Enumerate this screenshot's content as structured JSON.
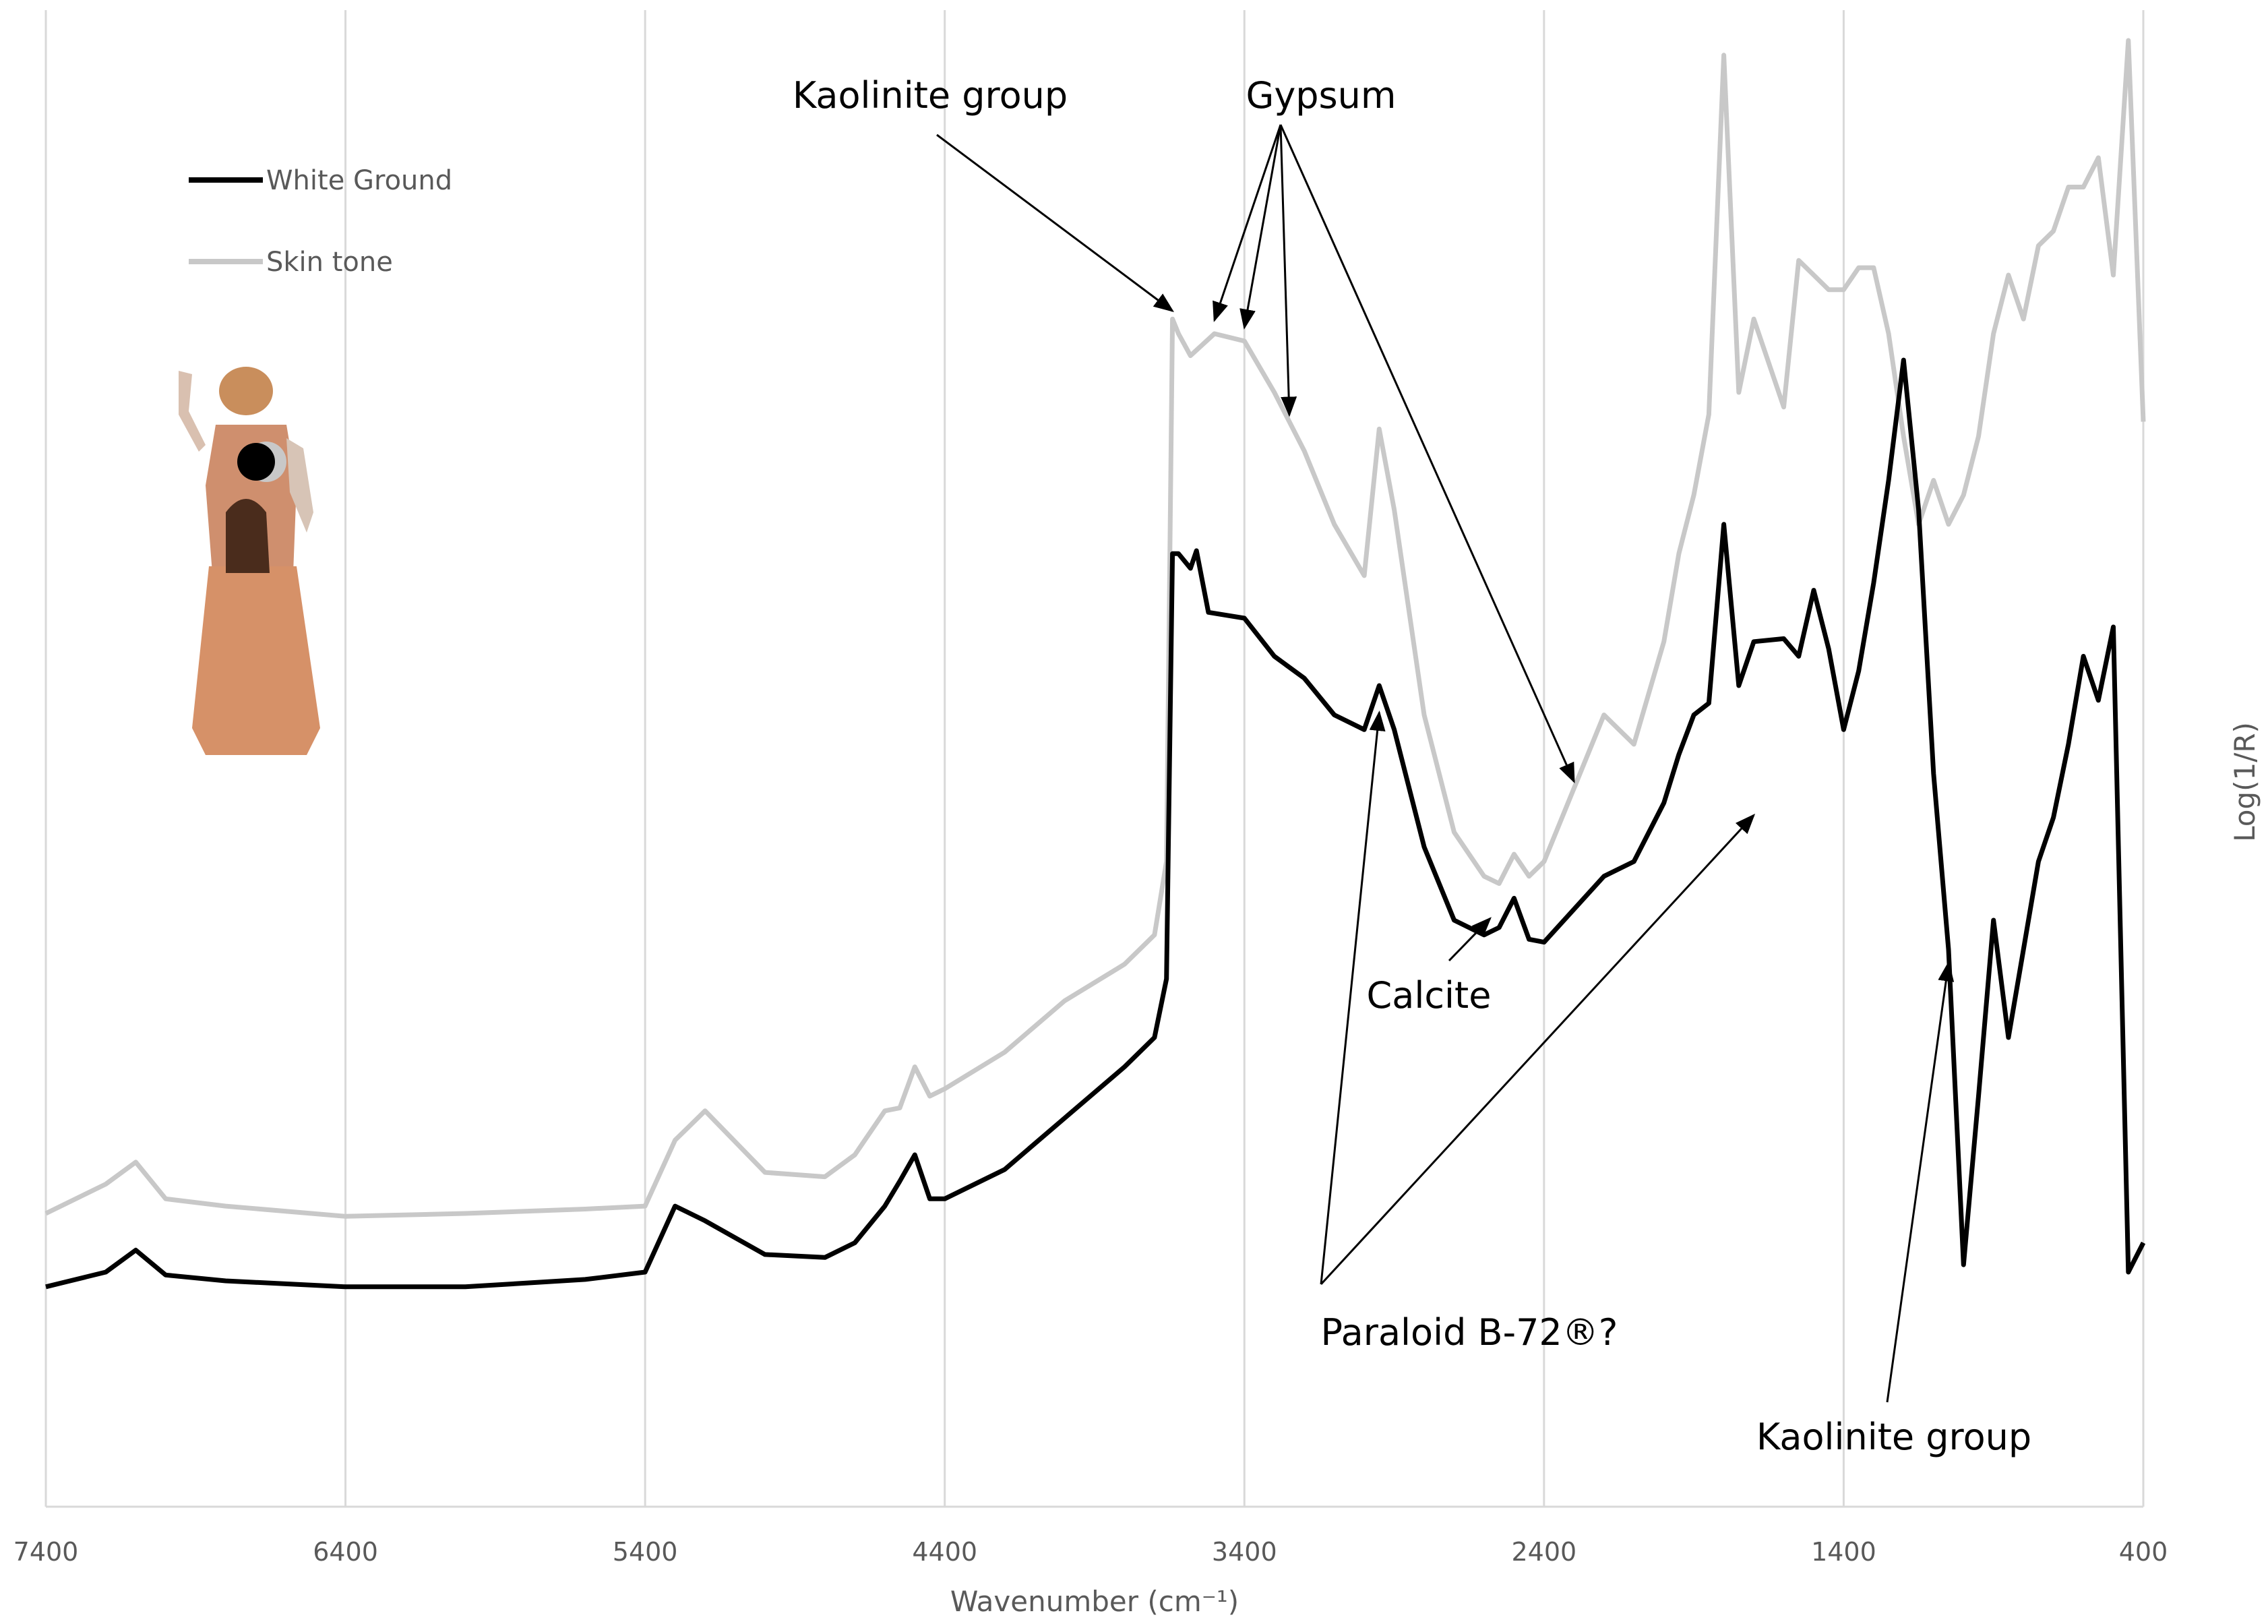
{
  "chart_data": {
    "type": "line",
    "xlabel": "Wavenumber (cm⁻¹)",
    "ylabel": "Log(1/R)",
    "xlim": [
      7400,
      400
    ],
    "x_reversed": true,
    "ylim": [
      0,
      1
    ],
    "y_ticks_visible": false,
    "xticks": [
      7400,
      6400,
      5400,
      4400,
      3400,
      2400,
      1400,
      400
    ],
    "grid": {
      "vertical": true,
      "horizontal": false
    },
    "legend": {
      "position": "top-left",
      "entries": [
        {
          "name": "White Ground",
          "color": "#000000"
        },
        {
          "name": "Skin tone",
          "color": "#c8c8c8"
        }
      ]
    },
    "series": [
      {
        "name": "White Ground",
        "color": "#000000",
        "points": [
          [
            7400,
            0.15
          ],
          [
            7200,
            0.16
          ],
          [
            7100,
            0.175
          ],
          [
            7000,
            0.158
          ],
          [
            6800,
            0.154
          ],
          [
            6400,
            0.15
          ],
          [
            6000,
            0.15
          ],
          [
            5600,
            0.155
          ],
          [
            5400,
            0.16
          ],
          [
            5300,
            0.205
          ],
          [
            5200,
            0.195
          ],
          [
            5000,
            0.172
          ],
          [
            4800,
            0.17
          ],
          [
            4700,
            0.18
          ],
          [
            4600,
            0.205
          ],
          [
            4550,
            0.222
          ],
          [
            4500,
            0.24
          ],
          [
            4450,
            0.21
          ],
          [
            4400,
            0.21
          ],
          [
            4200,
            0.23
          ],
          [
            4000,
            0.265
          ],
          [
            3800,
            0.3
          ],
          [
            3700,
            0.32
          ],
          [
            3660,
            0.36
          ],
          [
            3640,
            0.65
          ],
          [
            3620,
            0.65
          ],
          [
            3580,
            0.64
          ],
          [
            3560,
            0.652
          ],
          [
            3520,
            0.61
          ],
          [
            3400,
            0.606
          ],
          [
            3300,
            0.58
          ],
          [
            3200,
            0.565
          ],
          [
            3100,
            0.54
          ],
          [
            3000,
            0.53
          ],
          [
            2950,
            0.56
          ],
          [
            2900,
            0.53
          ],
          [
            2800,
            0.45
          ],
          [
            2700,
            0.4
          ],
          [
            2600,
            0.39
          ],
          [
            2550,
            0.395
          ],
          [
            2500,
            0.415
          ],
          [
            2450,
            0.387
          ],
          [
            2400,
            0.385
          ],
          [
            2200,
            0.43
          ],
          [
            2100,
            0.44
          ],
          [
            2000,
            0.48
          ],
          [
            1950,
            0.513
          ],
          [
            1900,
            0.54
          ],
          [
            1850,
            0.548
          ],
          [
            1800,
            0.67
          ],
          [
            1750,
            0.56
          ],
          [
            1700,
            0.59
          ],
          [
            1600,
            0.592
          ],
          [
            1550,
            0.58
          ],
          [
            1500,
            0.625
          ],
          [
            1450,
            0.585
          ],
          [
            1400,
            0.53
          ],
          [
            1350,
            0.57
          ],
          [
            1300,
            0.63
          ],
          [
            1250,
            0.7
          ],
          [
            1200,
            0.782
          ],
          [
            1150,
            0.68
          ],
          [
            1100,
            0.5
          ],
          [
            1050,
            0.38
          ],
          [
            1000,
            0.165
          ],
          [
            950,
            0.28
          ],
          [
            900,
            0.4
          ],
          [
            850,
            0.32
          ],
          [
            800,
            0.38
          ],
          [
            750,
            0.44
          ],
          [
            700,
            0.47
          ],
          [
            650,
            0.52
          ],
          [
            600,
            0.58
          ],
          [
            550,
            0.55
          ],
          [
            500,
            0.6
          ],
          [
            450,
            0.16
          ],
          [
            400,
            0.18
          ]
        ]
      },
      {
        "name": "Skin tone",
        "color": "#c8c8c8",
        "points": [
          [
            7400,
            0.2
          ],
          [
            7200,
            0.22
          ],
          [
            7100,
            0.235
          ],
          [
            7000,
            0.21
          ],
          [
            6800,
            0.205
          ],
          [
            6400,
            0.198
          ],
          [
            6000,
            0.2
          ],
          [
            5600,
            0.203
          ],
          [
            5400,
            0.205
          ],
          [
            5300,
            0.25
          ],
          [
            5200,
            0.27
          ],
          [
            5000,
            0.228
          ],
          [
            4800,
            0.225
          ],
          [
            4700,
            0.24
          ],
          [
            4600,
            0.27
          ],
          [
            4550,
            0.272
          ],
          [
            4500,
            0.3
          ],
          [
            4450,
            0.28
          ],
          [
            4400,
            0.285
          ],
          [
            4200,
            0.31
          ],
          [
            4000,
            0.345
          ],
          [
            3800,
            0.37
          ],
          [
            3700,
            0.39
          ],
          [
            3660,
            0.44
          ],
          [
            3640,
            0.81
          ],
          [
            3620,
            0.8
          ],
          [
            3580,
            0.785
          ],
          [
            3500,
            0.8
          ],
          [
            3400,
            0.795
          ],
          [
            3300,
            0.76
          ],
          [
            3200,
            0.72
          ],
          [
            3100,
            0.67
          ],
          [
            3000,
            0.635
          ],
          [
            2950,
            0.735
          ],
          [
            2900,
            0.68
          ],
          [
            2800,
            0.54
          ],
          [
            2700,
            0.46
          ],
          [
            2600,
            0.43
          ],
          [
            2550,
            0.425
          ],
          [
            2500,
            0.445
          ],
          [
            2450,
            0.43
          ],
          [
            2400,
            0.44
          ],
          [
            2200,
            0.54
          ],
          [
            2100,
            0.52
          ],
          [
            2000,
            0.59
          ],
          [
            1950,
            0.65
          ],
          [
            1900,
            0.69
          ],
          [
            1850,
            0.745
          ],
          [
            1800,
            0.99
          ],
          [
            1750,
            0.76
          ],
          [
            1700,
            0.81
          ],
          [
            1600,
            0.75
          ],
          [
            1550,
            0.85
          ],
          [
            1500,
            0.84
          ],
          [
            1450,
            0.83
          ],
          [
            1400,
            0.83
          ],
          [
            1350,
            0.845
          ],
          [
            1300,
            0.845
          ],
          [
            1250,
            0.8
          ],
          [
            1200,
            0.73
          ],
          [
            1150,
            0.67
          ],
          [
            1100,
            0.7
          ],
          [
            1050,
            0.67
          ],
          [
            1000,
            0.69
          ],
          [
            950,
            0.73
          ],
          [
            900,
            0.8
          ],
          [
            850,
            0.84
          ],
          [
            800,
            0.81
          ],
          [
            750,
            0.86
          ],
          [
            700,
            0.87
          ],
          [
            650,
            0.9
          ],
          [
            600,
            0.9
          ],
          [
            550,
            0.92
          ],
          [
            500,
            0.84
          ],
          [
            450,
            1.0
          ],
          [
            400,
            0.74
          ]
        ]
      }
    ],
    "annotations": [
      {
        "text": "Kaolinite group",
        "targets_x": [
          3640
        ]
      },
      {
        "text": "Gypsum",
        "targets_x": [
          3500,
          3400,
          3250,
          2300
        ]
      },
      {
        "text": "Calcite",
        "targets_x": [
          2580
        ]
      },
      {
        "text": "Paraloid B-72®?",
        "targets_x": [
          2950,
          1700
        ]
      },
      {
        "text": "Kaolinite group",
        "targets_x": [
          1050
        ]
      }
    ]
  }
}
